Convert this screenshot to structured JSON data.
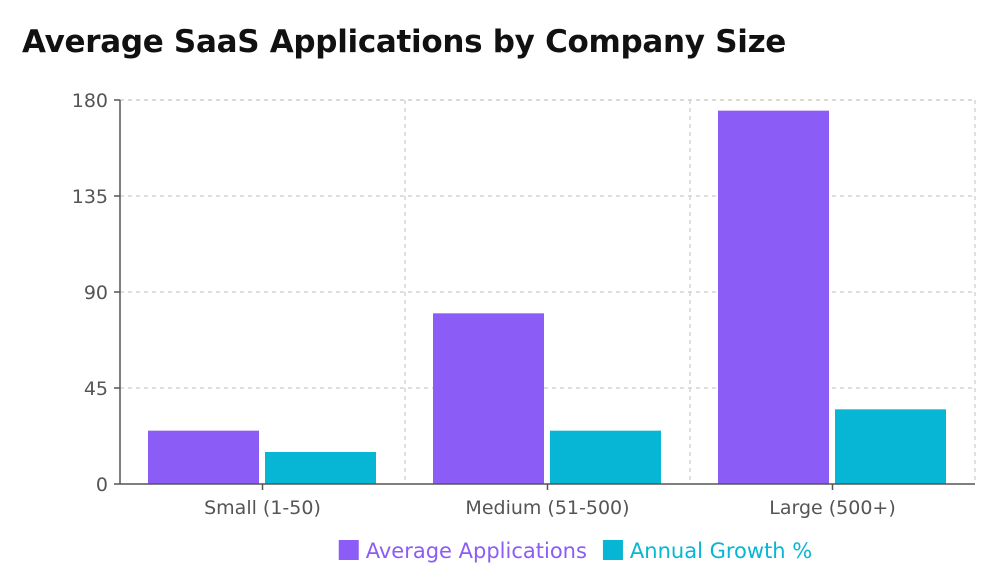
{
  "chart_data": {
    "type": "bar",
    "title": "Average SaaS Applications by Company Size",
    "categories": [
      "Small (1-50)",
      "Medium (51-500)",
      "Large (500+)"
    ],
    "series": [
      {
        "name": "Average Applications",
        "color": "#8b5cf6",
        "values": [
          25,
          80,
          175
        ]
      },
      {
        "name": "Annual Growth %",
        "color": "#06b6d4",
        "values": [
          15,
          25,
          35
        ]
      }
    ],
    "yticks": [
      0,
      45,
      90,
      135,
      180
    ],
    "ylim": [
      0,
      180
    ],
    "xlabel": "",
    "ylabel": "",
    "grid": true,
    "legend": "bottom"
  }
}
